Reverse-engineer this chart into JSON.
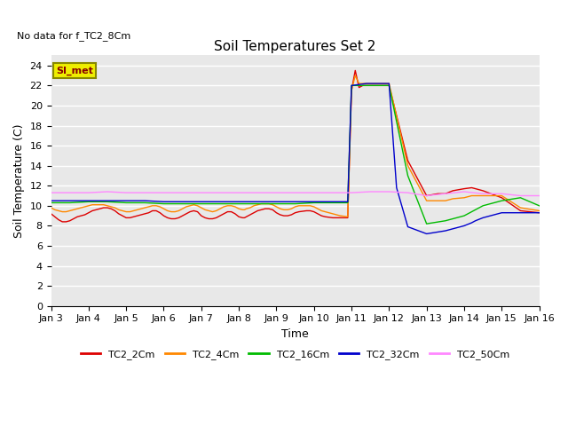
{
  "title": "Soil Temperatures Set 2",
  "subtitle": "No data for f_TC2_8Cm",
  "xlabel": "Time",
  "ylabel": "Soil Temperature (C)",
  "xlim": [
    0,
    13
  ],
  "ylim": [
    0,
    25
  ],
  "yticks": [
    0,
    2,
    4,
    6,
    8,
    10,
    12,
    14,
    16,
    18,
    20,
    22,
    24
  ],
  "xtick_labels": [
    "Jan 3",
    "Jan 4",
    "Jan 5",
    "Jan 6",
    "Jan 7",
    "Jan 8",
    "Jan 9",
    "Jan 10",
    "Jan 11",
    "Jan 12",
    "Jan 13",
    "Jan 14",
    "Jan 15",
    "Jan 16"
  ],
  "bg_color": "#e8e8e8",
  "grid_color": "#ffffff",
  "series": {
    "TC2_2Cm": {
      "color": "#dd0000",
      "x": [
        0.0,
        0.1,
        0.2,
        0.3,
        0.4,
        0.5,
        0.6,
        0.7,
        0.8,
        0.9,
        1.0,
        1.1,
        1.2,
        1.3,
        1.4,
        1.5,
        1.6,
        1.7,
        1.8,
        1.9,
        2.0,
        2.1,
        2.2,
        2.3,
        2.4,
        2.5,
        2.6,
        2.7,
        2.8,
        2.9,
        3.0,
        3.1,
        3.2,
        3.3,
        3.4,
        3.5,
        3.6,
        3.7,
        3.8,
        3.9,
        4.0,
        4.1,
        4.2,
        4.3,
        4.4,
        4.5,
        4.6,
        4.7,
        4.8,
        4.9,
        5.0,
        5.1,
        5.15,
        5.2,
        5.3,
        5.4,
        5.5,
        5.6,
        5.7,
        5.8,
        5.9,
        6.0,
        6.1,
        6.2,
        6.3,
        6.4,
        6.45,
        6.5,
        6.6,
        6.8,
        6.9,
        7.0,
        7.05,
        7.1,
        7.15,
        7.2,
        7.3,
        7.5,
        7.7,
        7.9,
        8.0,
        8.1,
        8.2,
        8.3,
        8.4,
        8.5,
        8.6,
        8.7,
        8.9,
        9.0,
        9.5,
        10.0,
        10.3,
        10.5,
        10.7,
        11.0,
        11.2,
        11.5,
        12.0,
        12.5,
        13.0
      ],
      "y": [
        9.2,
        8.9,
        8.6,
        8.4,
        8.4,
        8.5,
        8.7,
        8.9,
        9.0,
        9.1,
        9.3,
        9.5,
        9.6,
        9.7,
        9.8,
        9.8,
        9.7,
        9.5,
        9.2,
        9.0,
        8.8,
        8.8,
        8.9,
        9.0,
        9.1,
        9.2,
        9.3,
        9.5,
        9.5,
        9.3,
        9.0,
        8.8,
        8.7,
        8.7,
        8.8,
        9.0,
        9.2,
        9.4,
        9.5,
        9.4,
        9.0,
        8.8,
        8.7,
        8.7,
        8.8,
        9.0,
        9.2,
        9.4,
        9.4,
        9.2,
        8.9,
        8.8,
        8.8,
        8.9,
        9.1,
        9.3,
        9.5,
        9.6,
        9.7,
        9.7,
        9.6,
        9.3,
        9.1,
        9.0,
        9.0,
        9.1,
        9.2,
        9.3,
        9.4,
        9.5,
        9.5,
        9.4,
        9.3,
        9.2,
        9.1,
        9.0,
        8.9,
        8.8,
        8.8,
        8.8,
        21.5,
        23.5,
        21.8,
        22.0,
        22.0,
        22.0,
        22.0,
        22.0,
        22.0,
        22.0,
        14.5,
        11.0,
        11.2,
        11.2,
        11.5,
        11.7,
        11.8,
        11.5,
        10.8,
        9.5,
        9.3
      ]
    },
    "TC2_4Cm": {
      "color": "#ff8800",
      "x": [
        0.0,
        0.1,
        0.2,
        0.3,
        0.4,
        0.5,
        0.6,
        0.7,
        0.8,
        0.9,
        1.0,
        1.1,
        1.2,
        1.3,
        1.4,
        1.5,
        1.6,
        1.7,
        1.8,
        1.9,
        2.0,
        2.1,
        2.2,
        2.3,
        2.4,
        2.5,
        2.6,
        2.7,
        2.8,
        2.9,
        3.0,
        3.1,
        3.2,
        3.3,
        3.4,
        3.5,
        3.6,
        3.7,
        3.8,
        3.9,
        4.0,
        4.1,
        4.2,
        4.3,
        4.4,
        4.5,
        4.6,
        4.7,
        4.8,
        4.9,
        5.0,
        5.1,
        5.15,
        5.2,
        5.3,
        5.4,
        5.5,
        5.6,
        5.7,
        5.8,
        5.9,
        6.0,
        6.1,
        6.2,
        6.3,
        6.4,
        6.45,
        6.5,
        6.6,
        6.8,
        6.9,
        7.0,
        7.05,
        7.1,
        7.15,
        7.2,
        7.3,
        7.5,
        7.7,
        7.9,
        8.0,
        8.1,
        8.2,
        8.3,
        8.4,
        8.5,
        8.6,
        8.7,
        8.9,
        9.0,
        9.5,
        10.0,
        10.3,
        10.5,
        10.7,
        11.0,
        11.2,
        11.5,
        12.0,
        12.5,
        13.0
      ],
      "y": [
        9.8,
        9.6,
        9.5,
        9.4,
        9.4,
        9.5,
        9.6,
        9.7,
        9.8,
        9.9,
        10.0,
        10.1,
        10.1,
        10.1,
        10.1,
        10.0,
        9.9,
        9.8,
        9.6,
        9.5,
        9.4,
        9.4,
        9.5,
        9.6,
        9.7,
        9.8,
        9.9,
        10.0,
        10.0,
        9.9,
        9.7,
        9.5,
        9.4,
        9.4,
        9.5,
        9.7,
        9.9,
        10.0,
        10.1,
        10.0,
        9.8,
        9.6,
        9.5,
        9.4,
        9.5,
        9.7,
        9.9,
        10.0,
        10.0,
        9.9,
        9.7,
        9.6,
        9.6,
        9.7,
        9.8,
        10.0,
        10.1,
        10.2,
        10.2,
        10.2,
        10.1,
        9.9,
        9.7,
        9.6,
        9.6,
        9.7,
        9.8,
        9.9,
        10.0,
        10.0,
        10.0,
        9.9,
        9.8,
        9.7,
        9.6,
        9.5,
        9.4,
        9.2,
        9.0,
        8.9,
        21.5,
        23.0,
        22.2,
        22.2,
        22.2,
        22.2,
        22.2,
        22.2,
        22.2,
        22.2,
        14.0,
        10.5,
        10.5,
        10.5,
        10.7,
        10.8,
        11.0,
        11.0,
        11.0,
        9.8,
        9.5
      ]
    },
    "TC2_16Cm": {
      "color": "#00bb00",
      "x": [
        0.0,
        0.5,
        1.0,
        1.5,
        2.0,
        2.5,
        3.0,
        3.5,
        4.0,
        4.5,
        5.0,
        5.5,
        6.0,
        6.5,
        7.0,
        7.5,
        7.9,
        8.0,
        8.2,
        8.4,
        8.6,
        8.8,
        9.0,
        9.5,
        10.0,
        10.5,
        11.0,
        11.5,
        12.0,
        12.5,
        13.0
      ],
      "y": [
        10.3,
        10.3,
        10.4,
        10.4,
        10.3,
        10.3,
        10.2,
        10.2,
        10.2,
        10.2,
        10.2,
        10.2,
        10.2,
        10.2,
        10.3,
        10.3,
        10.3,
        22.0,
        22.0,
        22.0,
        22.0,
        22.0,
        22.0,
        13.0,
        8.2,
        8.5,
        9.0,
        10.0,
        10.5,
        10.8,
        10.0
      ]
    },
    "TC2_32Cm": {
      "color": "#0000cc",
      "x": [
        0.0,
        0.5,
        1.0,
        1.5,
        2.0,
        2.5,
        3.0,
        3.5,
        4.0,
        4.5,
        5.0,
        5.5,
        6.0,
        6.5,
        7.0,
        7.5,
        7.9,
        8.0,
        8.2,
        8.4,
        8.6,
        8.8,
        9.0,
        9.2,
        9.5,
        10.0,
        10.5,
        11.0,
        11.2,
        11.3,
        11.5,
        11.7,
        12.0,
        12.5,
        13.0
      ],
      "y": [
        10.5,
        10.5,
        10.5,
        10.5,
        10.5,
        10.5,
        10.4,
        10.4,
        10.4,
        10.4,
        10.4,
        10.4,
        10.4,
        10.4,
        10.4,
        10.4,
        10.4,
        22.0,
        22.1,
        22.2,
        22.2,
        22.2,
        22.2,
        11.8,
        7.9,
        7.2,
        7.5,
        8.0,
        8.3,
        8.5,
        8.8,
        9.0,
        9.3,
        9.3,
        9.3
      ]
    },
    "TC2_50Cm": {
      "color": "#ff88ff",
      "x": [
        0.0,
        0.5,
        1.0,
        1.5,
        2.0,
        2.5,
        3.0,
        3.5,
        4.0,
        4.5,
        5.0,
        5.5,
        6.0,
        6.5,
        7.0,
        7.5,
        7.9,
        8.0,
        8.5,
        9.0,
        9.5,
        10.0,
        10.5,
        11.0,
        11.5,
        12.0,
        12.5,
        13.0
      ],
      "y": [
        11.3,
        11.3,
        11.3,
        11.4,
        11.3,
        11.3,
        11.3,
        11.3,
        11.3,
        11.3,
        11.3,
        11.3,
        11.3,
        11.3,
        11.3,
        11.3,
        11.3,
        11.3,
        11.4,
        11.4,
        11.3,
        11.0,
        11.2,
        11.4,
        11.2,
        11.2,
        11.0,
        11.0
      ]
    }
  },
  "legend_items": [
    "TC2_2Cm",
    "TC2_4Cm",
    "TC2_16Cm",
    "TC2_32Cm",
    "TC2_50Cm"
  ],
  "legend_colors": [
    "#dd0000",
    "#ff8800",
    "#00bb00",
    "#0000cc",
    "#ff88ff"
  ],
  "si_met_box_color": "#eeee00",
  "si_met_text_color": "#880000"
}
